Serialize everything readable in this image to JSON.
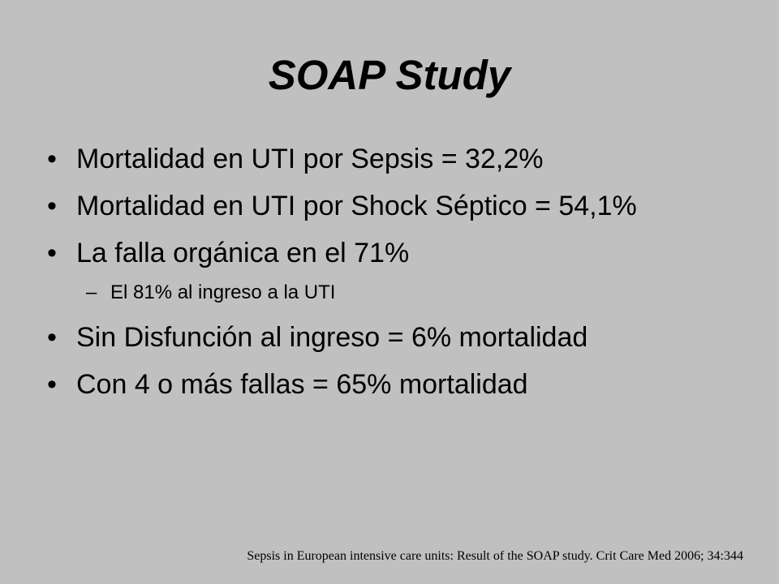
{
  "slide": {
    "title": "SOAP Study",
    "bullets": [
      {
        "marker": "•",
        "text": "Mortalidad en UTI por Sepsis = 32,2%"
      },
      {
        "marker": "•",
        "text": "Mortalidad en UTI por Shock Séptico = 54,1%"
      },
      {
        "marker": "•",
        "text": "La falla orgánica en el 71%"
      },
      {
        "marker": "–",
        "text": "El 81% al ingreso a la UTI"
      },
      {
        "marker": "•",
        "text": "Sin Disfunción al ingreso = 6% mortalidad"
      },
      {
        "marker": "•",
        "text": "Con 4 o más fallas = 65% mortalidad"
      }
    ],
    "citation": "Sepsis in European intensive care units: Result of the SOAP study. Crit Care Med 2006; 34:344"
  },
  "colors": {
    "background": "#c0c0c0",
    "text": "#000000"
  }
}
